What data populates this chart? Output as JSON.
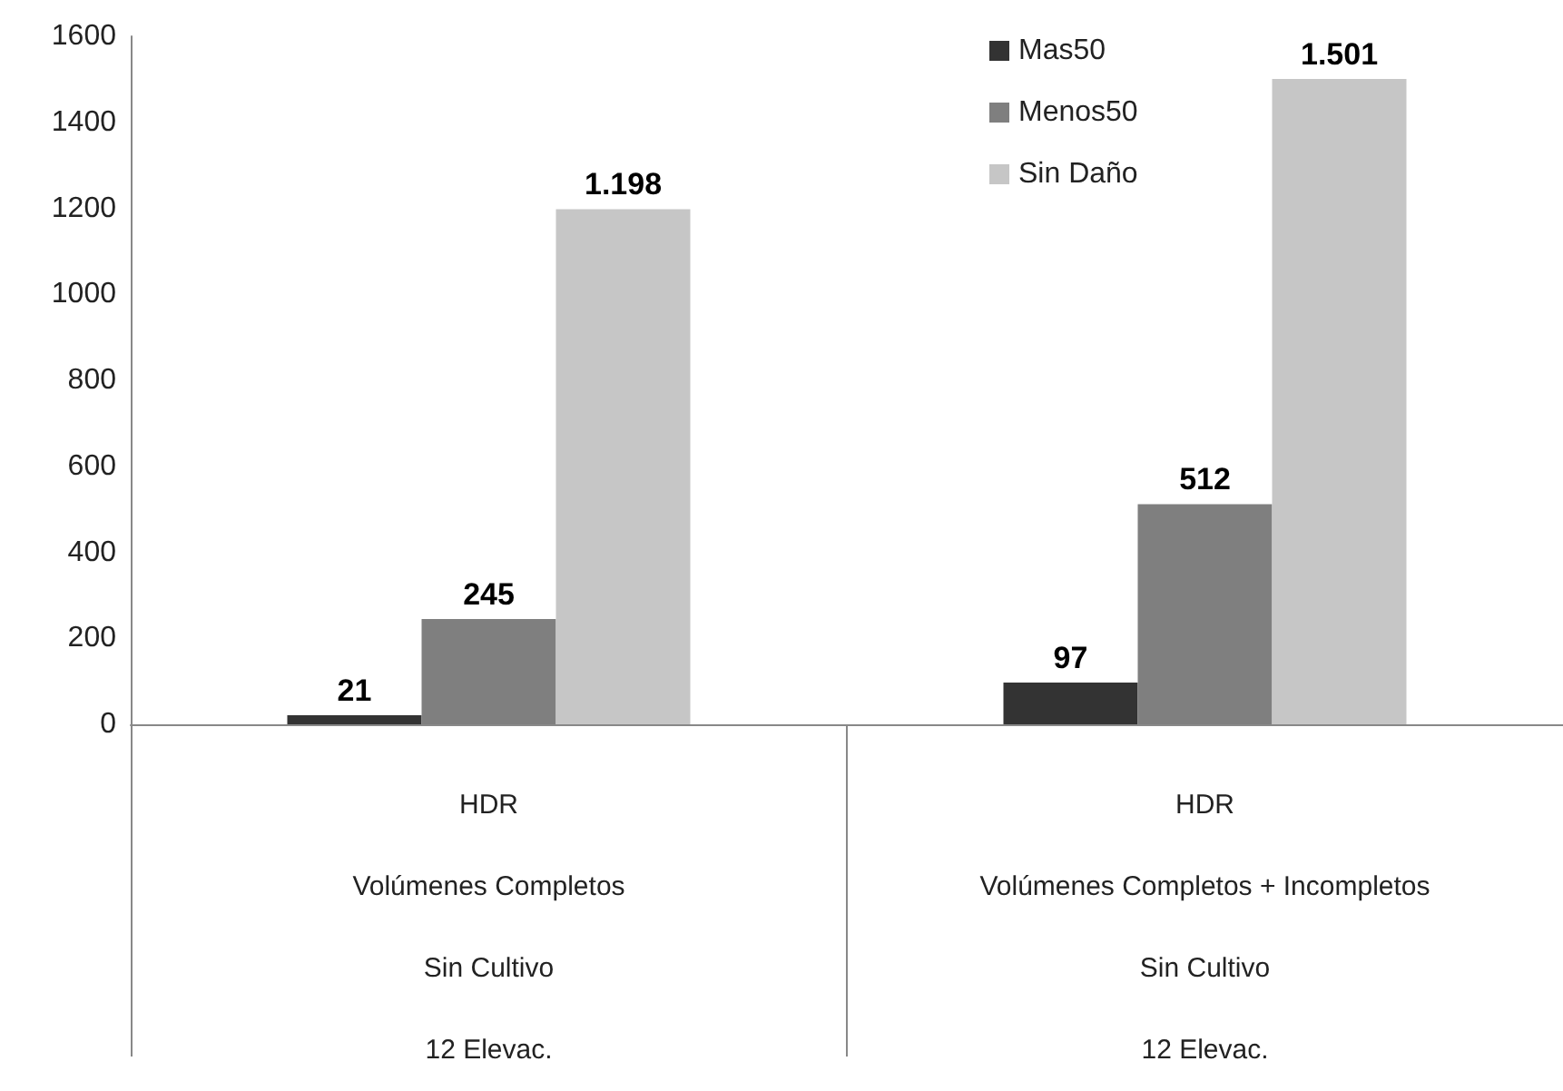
{
  "chart_data": {
    "type": "bar",
    "categories": [
      "HDR\nVolúmenes Completos\nSin Cultivo\n12 Elevac.",
      "HDR\nVolúmenes Completos + Incompletos\nSin Cultivo\n12 Elevac."
    ],
    "series": [
      {
        "name": "Mas50",
        "color": "#333333",
        "values": [
          21,
          97
        ],
        "value_labels": [
          "21",
          "97"
        ]
      },
      {
        "name": "Menos50",
        "color": "#7f7f7f",
        "values": [
          245,
          512
        ],
        "value_labels": [
          "245",
          "512"
        ]
      },
      {
        "name": "Sin Daño",
        "color": "#c6c6c6",
        "values": [
          1198,
          1501
        ],
        "value_labels": [
          "1.198",
          "1.501"
        ]
      }
    ],
    "ylim": [
      0,
      1600
    ],
    "yticks": [
      0,
      200,
      400,
      600,
      800,
      1000,
      1200,
      1400,
      1600
    ],
    "grid": false,
    "legend": "top right"
  }
}
